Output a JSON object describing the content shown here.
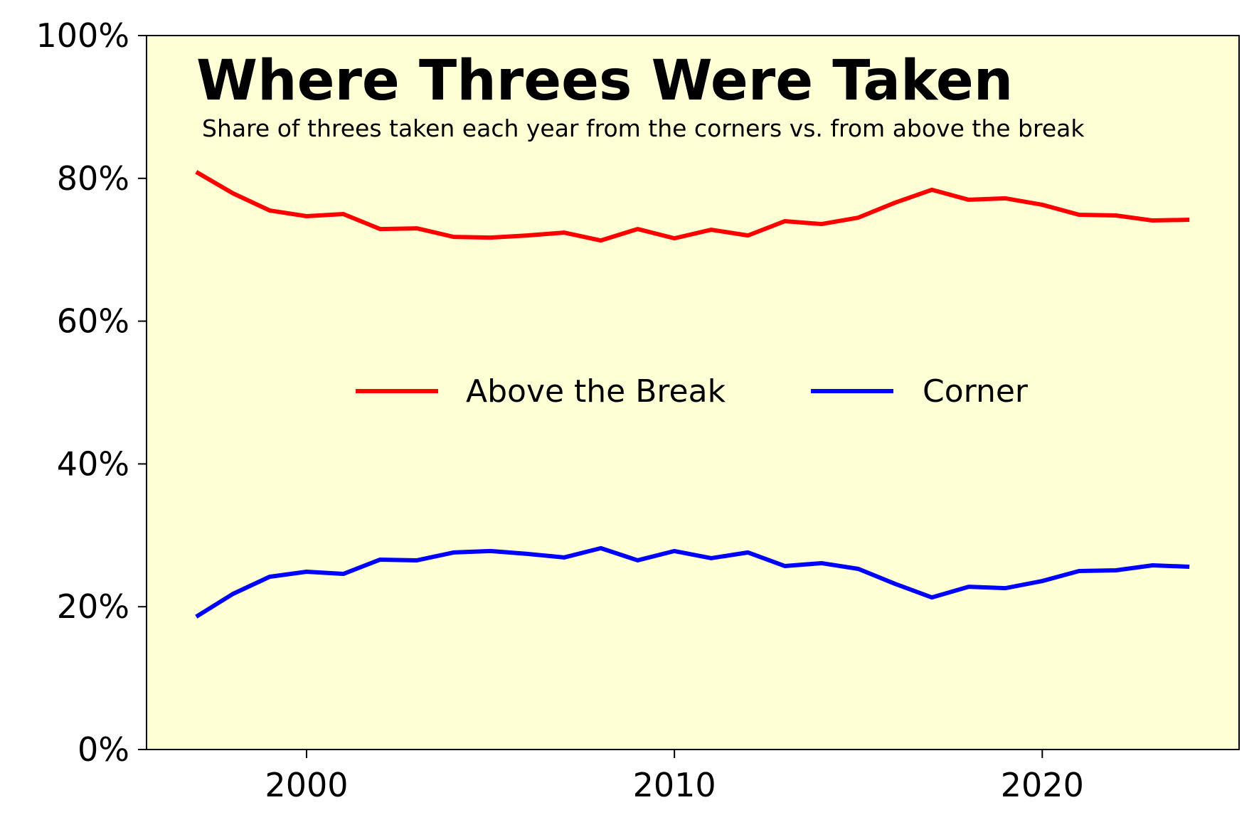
{
  "chart_data": {
    "type": "line",
    "title": "Where Threes Were Taken",
    "subtitle": "Share of threes taken each year from the corners vs. from above the break",
    "xlabel": "",
    "ylabel": "",
    "x": [
      1997,
      1998,
      1999,
      2000,
      2001,
      2002,
      2003,
      2004,
      2005,
      2006,
      2007,
      2008,
      2009,
      2010,
      2011,
      2012,
      2013,
      2014,
      2015,
      2016,
      2017,
      2018,
      2019,
      2020,
      2021,
      2022,
      2023,
      2024
    ],
    "series": [
      {
        "name": "Above the Break",
        "color": "#ff0000",
        "values": [
          80.9,
          77.9,
          75.5,
          74.7,
          75.0,
          72.9,
          73.0,
          71.8,
          71.7,
          72.0,
          72.4,
          71.3,
          72.9,
          71.6,
          72.8,
          72.0,
          74.0,
          73.6,
          74.5,
          76.6,
          78.4,
          77.0,
          77.2,
          76.3,
          74.9,
          74.8,
          74.1,
          74.2
        ]
      },
      {
        "name": "Corner",
        "color": "#0000ff",
        "values": [
          18.6,
          21.8,
          24.2,
          24.9,
          24.6,
          26.6,
          26.5,
          27.6,
          27.8,
          27.4,
          26.9,
          28.2,
          26.5,
          27.8,
          26.8,
          27.6,
          25.7,
          26.1,
          25.3,
          23.2,
          21.3,
          22.8,
          22.6,
          23.6,
          25.0,
          25.1,
          25.8,
          25.6
        ]
      }
    ],
    "xlim": [
      1995.65,
      2025.35
    ],
    "ylim": [
      0,
      100
    ],
    "x_ticks": [
      2000,
      2010,
      2020
    ],
    "x_tick_labels": [
      "2000",
      "2010",
      "2020"
    ],
    "y_ticks": [
      0,
      20,
      40,
      60,
      80,
      100
    ],
    "y_tick_labels": [
      "0%",
      "20%",
      "40%",
      "60%",
      "80%",
      "100%"
    ],
    "grid": false,
    "legend_position": "center",
    "plot_background": "#ffffd5"
  }
}
